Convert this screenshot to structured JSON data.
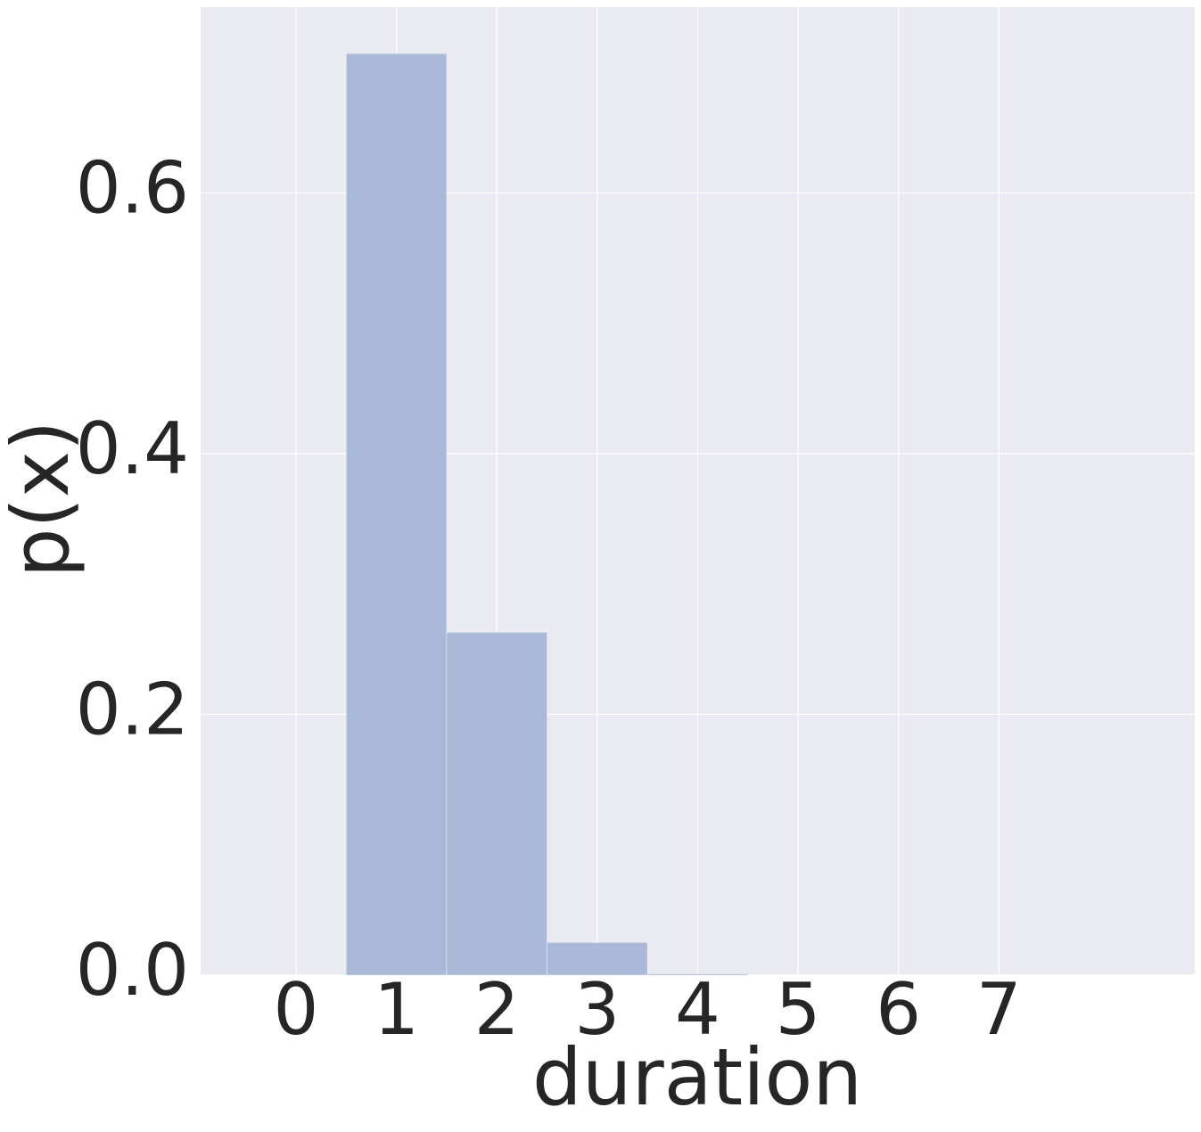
{
  "chart_data": {
    "type": "histogram",
    "xlabel": "duration",
    "ylabel": "p(x)",
    "bins": [
      0.5,
      1.5,
      2.5,
      3.5,
      4.5
    ],
    "values": [
      0.707,
      0.263,
      0.025,
      0.001
    ],
    "color": "#aab9d7",
    "xlim": [
      -0.95,
      8.95
    ],
    "ylim": [
      0,
      0.7426
    ],
    "xticks": [
      0,
      1,
      2,
      3,
      4,
      5,
      6,
      7
    ],
    "yticks": [
      {
        "value": 0,
        "label": "0.0"
      },
      0.2,
      0.4,
      0.6
    ],
    "grid": true
  }
}
